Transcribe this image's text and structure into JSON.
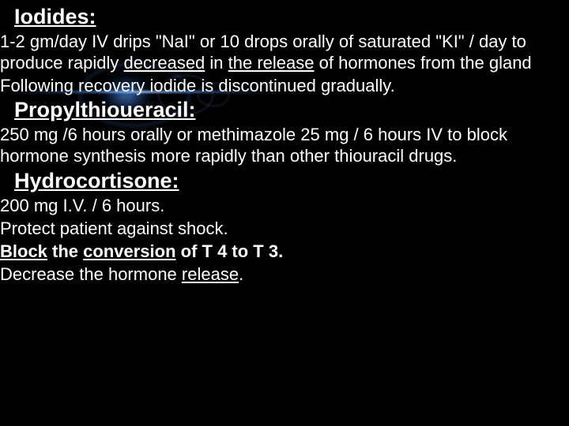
{
  "sections": [
    {
      "heading": "Iodides:",
      "paragraphs": [
        " 1-2 gm/day IV drips \"NaI\"  or 10 drops orally of saturated \"KI\" / day to produce rapidly <u>decreased</u> in <u>the release</u> of hormones from the gland",
        " Following recovery iodide is discontinued gradually."
      ]
    },
    {
      "heading": "Propylthioueracil:",
      "paragraphs": [
        "250 mg /6 hours orally or methimazole 25 mg / 6 hours IV  to block hormone synthesis more rapidly than other thiouracil drugs."
      ]
    },
    {
      "heading": "Hydrocortisone:",
      "paragraphs": [
        " 200 mg I.V. / 6 hours.",
        "Protect patient against shock.",
        "<b><u>Block</u> the <u>conversion</u> of T 4 to T 3.</b>",
        "Decrease the hormone <u>release</u>."
      ]
    }
  ]
}
